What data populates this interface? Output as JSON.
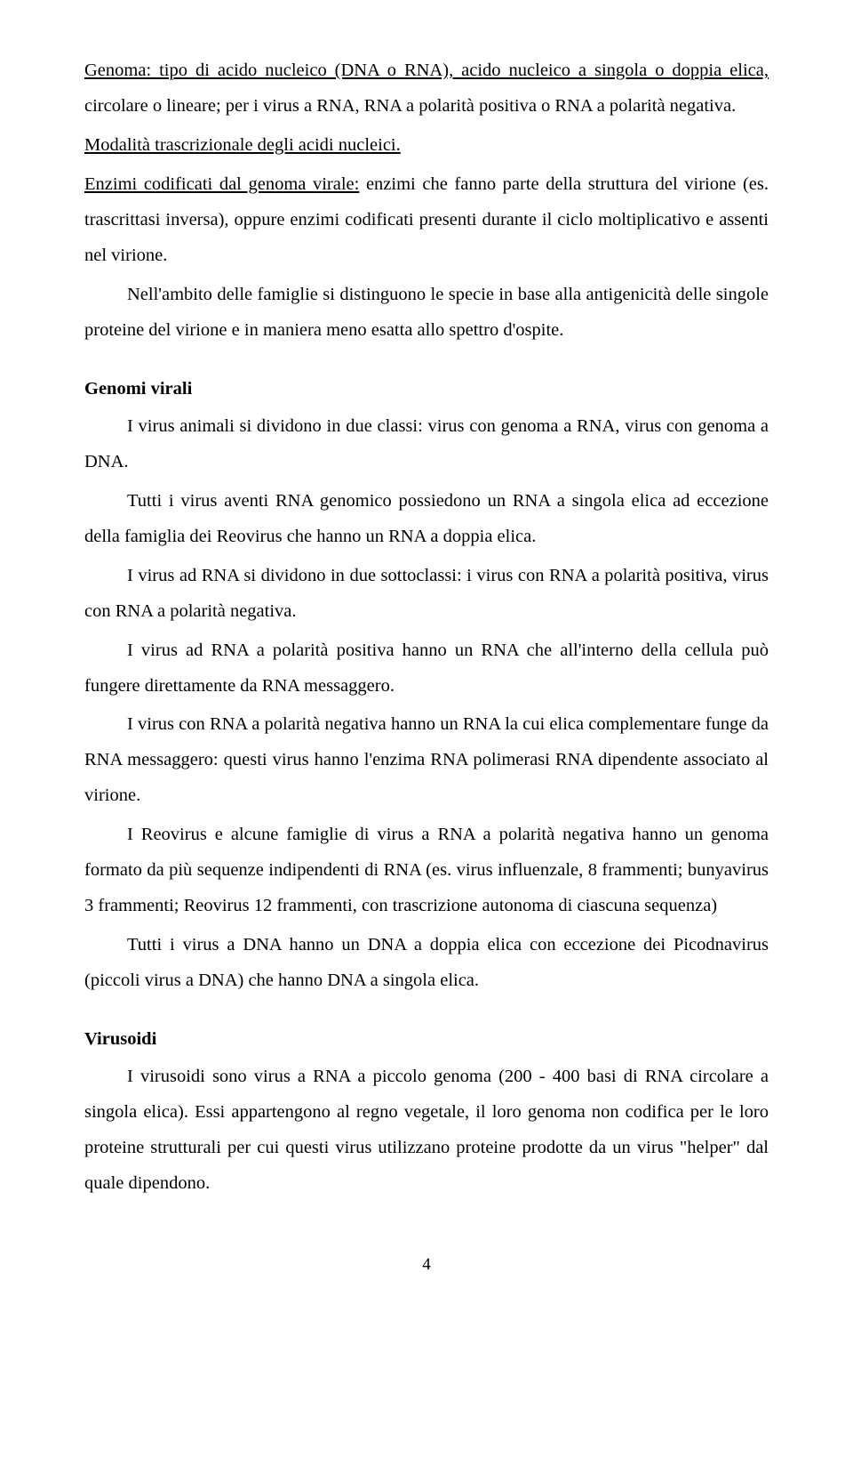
{
  "p1a": "Genoma: tipo di acido nucleico (DNA o RNA), acido nucleico a singola o doppia elica,",
  "p1b": " circolare o lineare; per i virus a RNA, RNA a polarità positiva o RNA a polarità negativa.",
  "p2a": " Modalità trascrizionale degli acidi nucleici.",
  "p3a": "Enzimi codificati dal genoma virale:",
  "p3b": " enzimi che fanno parte della struttura del virione (es. trascrittasi inversa), oppure enzimi codificati presenti durante il ciclo moltiplicativo e assenti nel virione.",
  "p4": "Nell'ambito delle famiglie si distinguono le specie in base alla antigenicità delle singole proteine del virione e in maniera meno esatta allo spettro d'ospite.",
  "h1": "Genomi virali",
  "p5": "I virus animali si dividono in due classi: virus con genoma a RNA, virus con genoma a DNA.",
  "p6": "Tutti i virus aventi RNA genomico possiedono un RNA a singola elica ad eccezione della famiglia dei Reovirus che hanno un RNA a doppia elica.",
  "p7": "I virus ad RNA si dividono in due sottoclassi: i virus con RNA a polarità positiva, virus con RNA a polarità negativa.",
  "p8": "I virus ad RNA a polarità positiva hanno un RNA che all'interno della cellula può fungere direttamente da RNA messaggero.",
  "p9": "I virus con RNA a polarità negativa hanno un RNA la cui elica complementare funge da RNA messaggero: questi virus hanno l'enzima RNA polimerasi RNA dipendente associato al virione.",
  "p10": "I Reovirus e alcune famiglie di virus a RNA a polarità negativa hanno un genoma formato da più sequenze indipendenti di RNA (es. virus influenzale, 8 frammenti; bunyavirus 3 frammenti; Reovirus 12 frammenti, con trascrizione autonoma di ciascuna sequenza)",
  "p11": "Tutti i virus a DNA hanno un DNA a doppia elica con eccezione dei Picodnavirus (piccoli virus a DNA) che hanno DNA a singola elica.",
  "h2": "Virusoidi",
  "p12": "I virusoidi sono virus a RNA a piccolo genoma (200 - 400 basi di RNA circolare a singola elica). Essi appartengono al regno vegetale, il loro genoma non codifica per le loro proteine strutturali per cui questi virus utilizzano proteine prodotte da un virus \"helper\" dal quale dipendono.",
  "pageNumber": "4"
}
